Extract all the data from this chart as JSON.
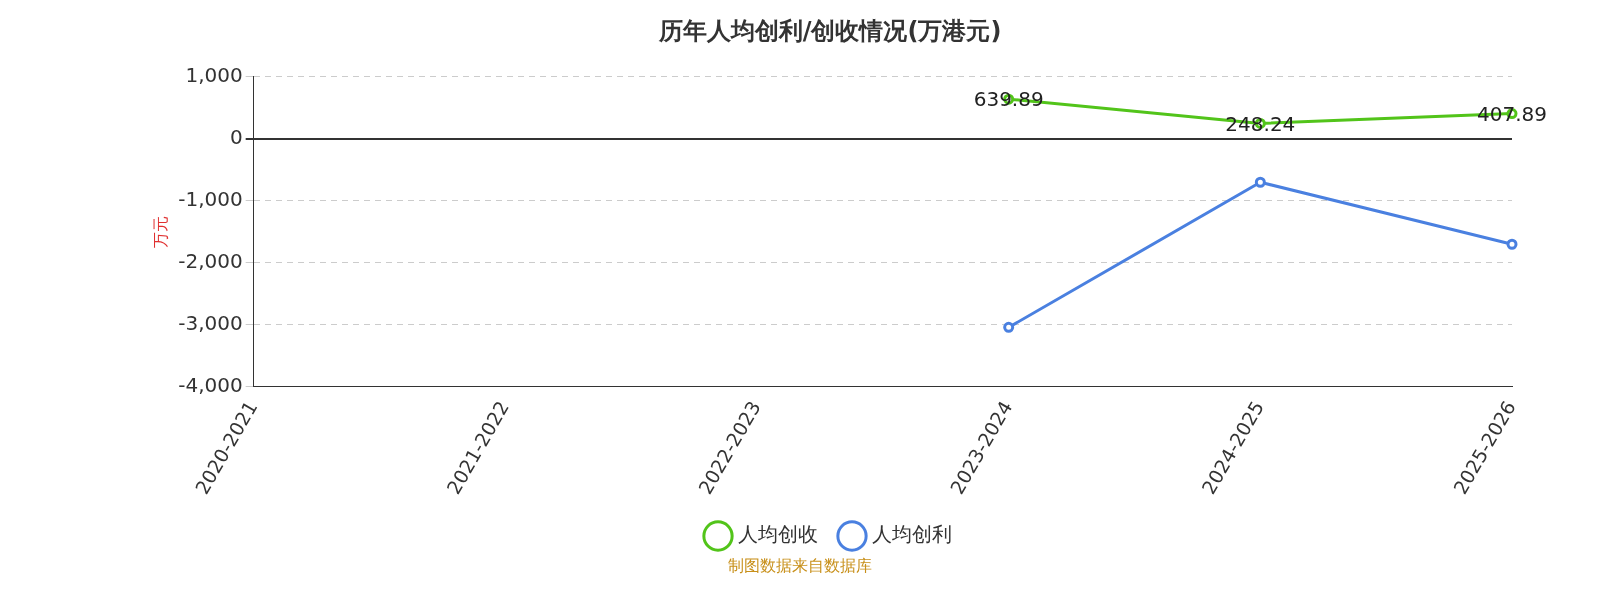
{
  "chart_data": {
    "type": "line",
    "title": "历年人均创利/创收情况(万港元)",
    "ylabel": "万元",
    "categories": [
      "2020-2021",
      "2021-2022",
      "2022-2023",
      "2023-2024",
      "2024-2025",
      "2025-2026"
    ],
    "series": [
      {
        "name": "人均创收",
        "color": "#52c41a",
        "values": [
          null,
          null,
          null,
          639.89,
          248.24,
          407.89
        ],
        "value_labels": [
          null,
          null,
          null,
          "639.89",
          "248.24",
          "407.89"
        ]
      },
      {
        "name": "人均创利",
        "color": "#4a80e0",
        "values": [
          null,
          null,
          null,
          -3040,
          -700,
          -1700
        ]
      }
    ],
    "ylim": [
      -4000,
      1000
    ],
    "yticks": [
      {
        "value": -4000,
        "label": "-4,000"
      },
      {
        "value": -3000,
        "label": "-3,000"
      },
      {
        "value": -2000,
        "label": "-2,000"
      },
      {
        "value": -1000,
        "label": "-1,000"
      },
      0,
      {
        "value": 1000,
        "label": "1,000"
      }
    ],
    "grid": "y",
    "legend": "bottom",
    "marker": "circle",
    "line_style": "solid",
    "annotations": [
      "制图数据来自数据库"
    ]
  }
}
